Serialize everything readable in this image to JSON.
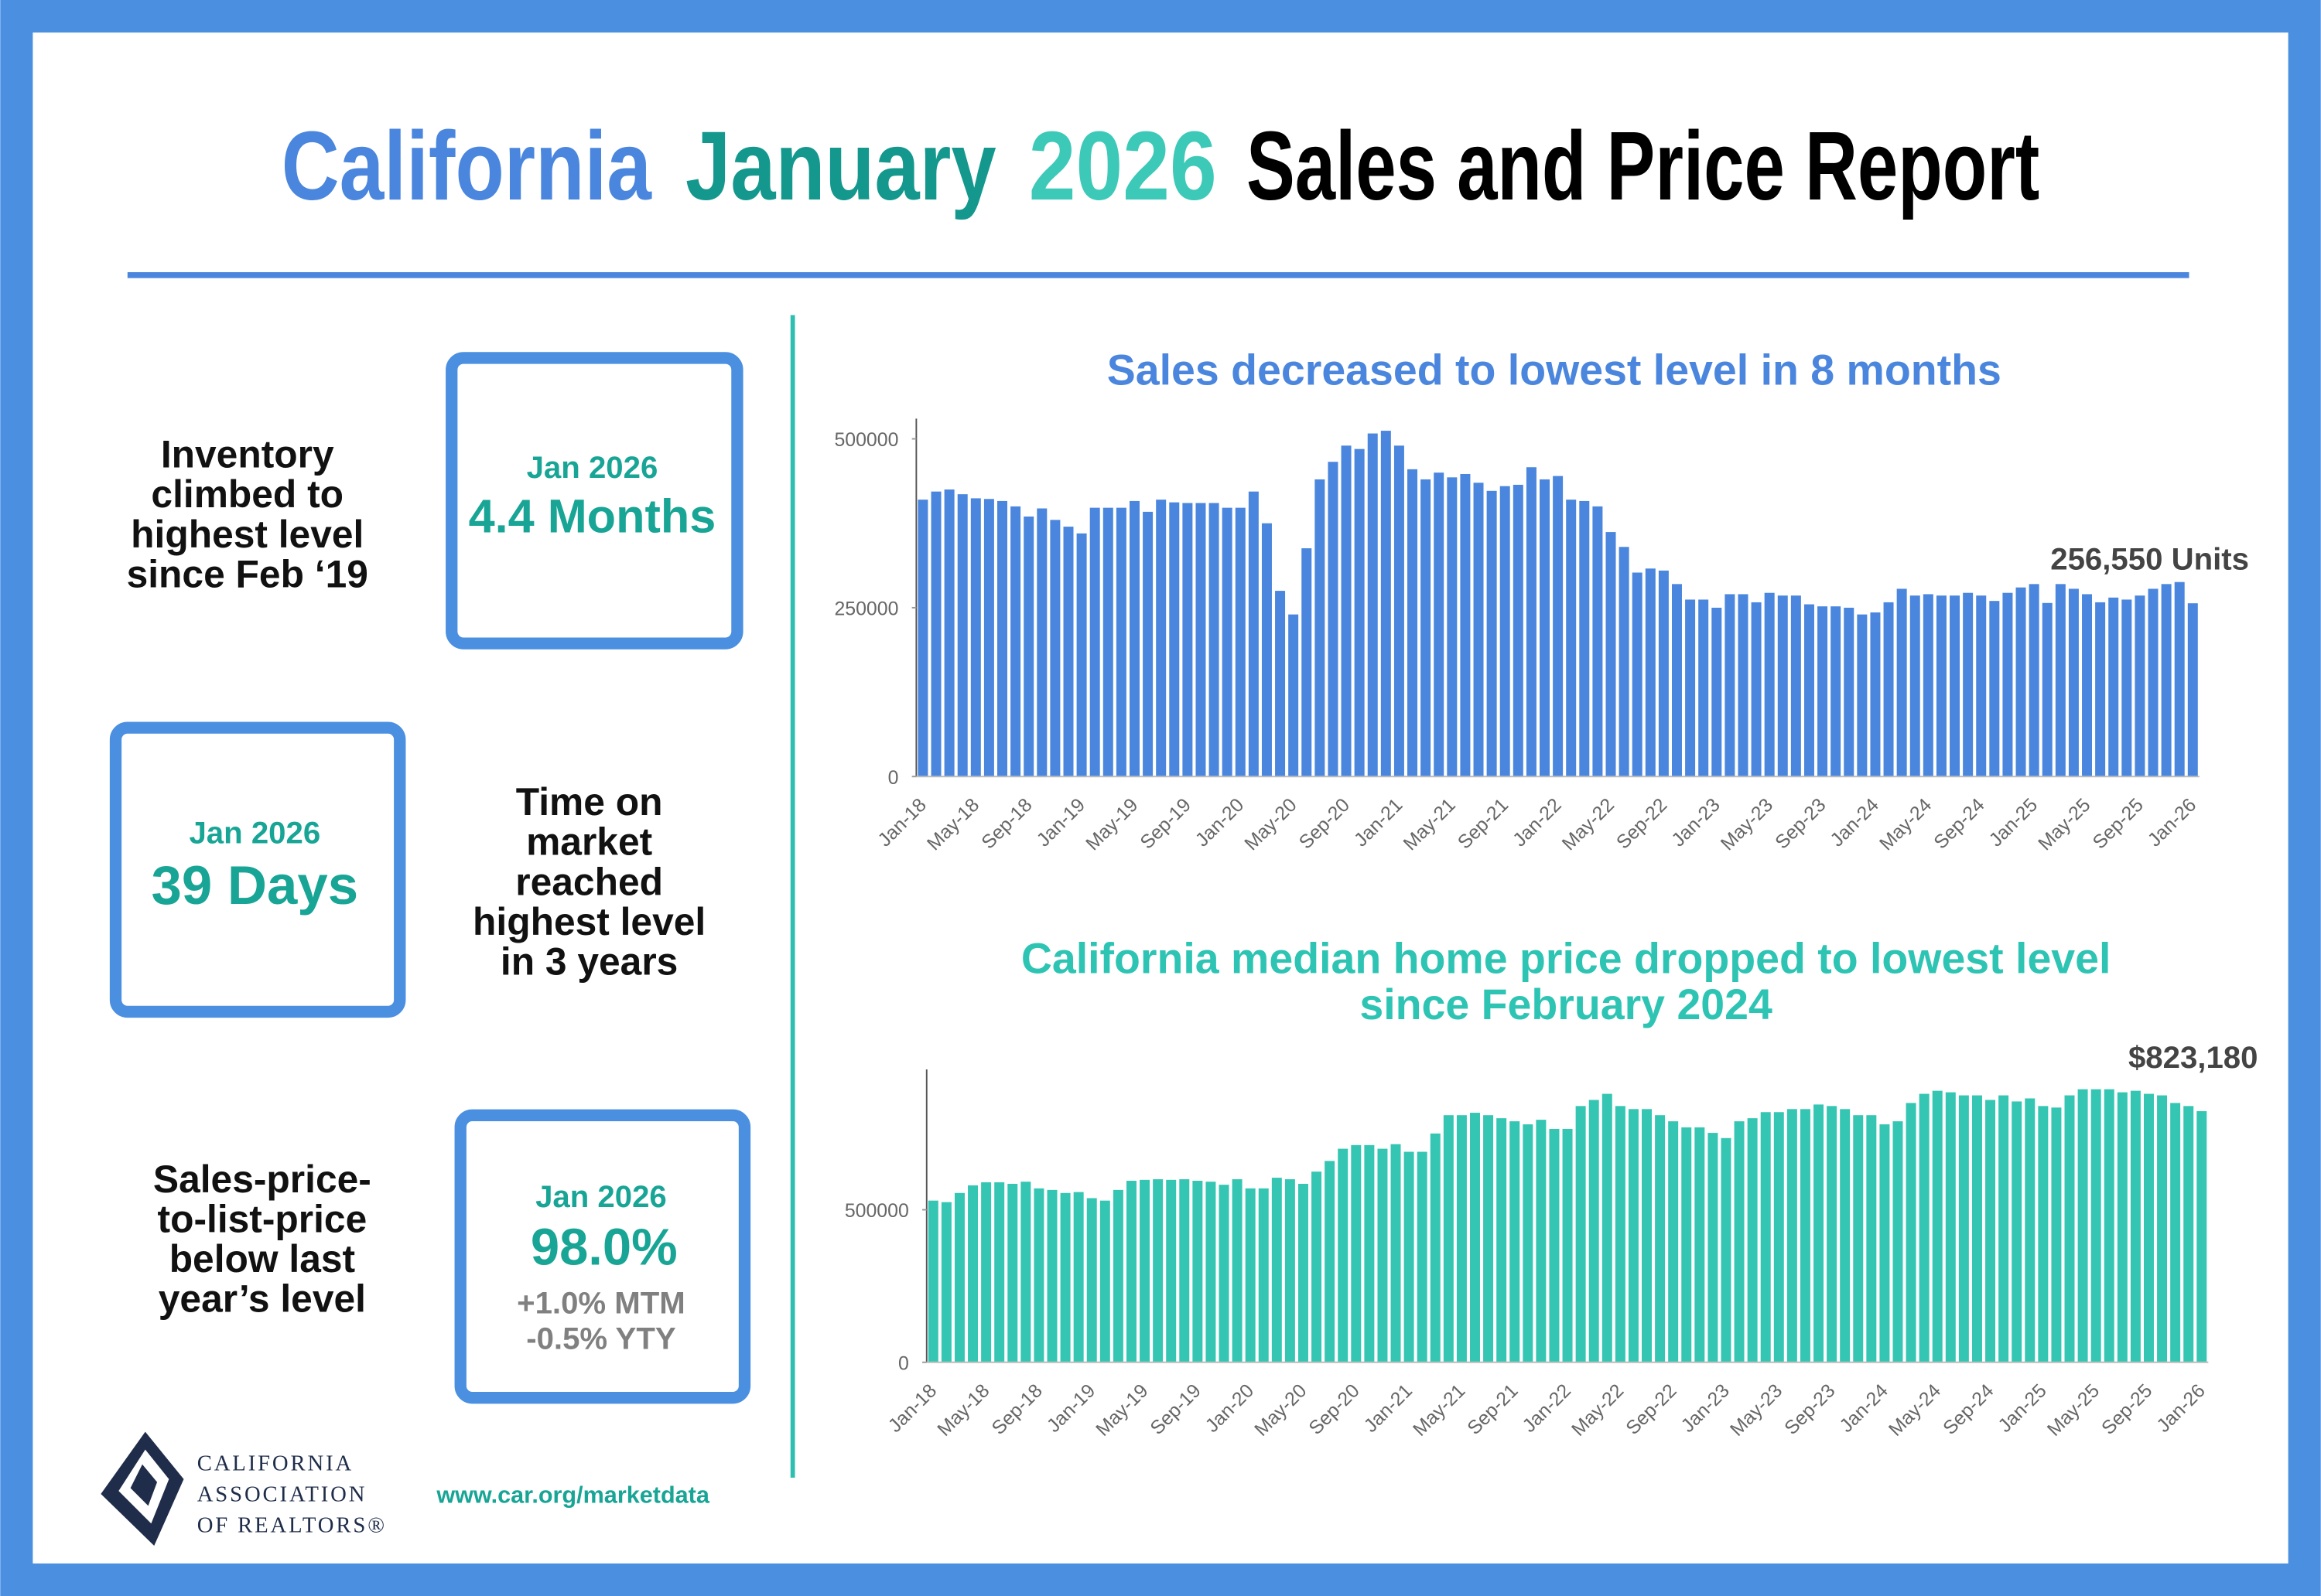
{
  "header": {
    "title_parts": [
      "California",
      "January",
      "2026",
      "Sales and Price Report"
    ]
  },
  "stats": [
    {
      "label_lines": [
        "Inventory",
        "climbed to",
        "highest level",
        "since Feb ‘19"
      ],
      "box_date": "Jan 2026",
      "box_value": "4.4 Months"
    },
    {
      "label_lines": [
        "Time on",
        "market",
        "reached",
        "highest level",
        "in 3 years"
      ],
      "box_date": "Jan 2026",
      "box_value": "39 Days"
    },
    {
      "label_lines": [
        "Sales-price-",
        "to-list-price",
        "below last",
        "year’s level"
      ],
      "box_date": "Jan 2026",
      "box_value": "98.0%",
      "notes": [
        "+1.0% MTM",
        "-0.5% YTY"
      ]
    }
  ],
  "chart_data": [
    {
      "type": "bar",
      "title": [
        "Sales decreased to lowest level in 8 months"
      ],
      "color": "#4a86dd",
      "ylim": [
        0,
        530000
      ],
      "yticks": [
        0,
        250000,
        500000
      ],
      "categories": [
        "Jan-18",
        null,
        null,
        null,
        "May-18",
        null,
        null,
        null,
        "Sep-18",
        null,
        null,
        null,
        "Jan-19",
        null,
        null,
        null,
        "May-19",
        null,
        null,
        null,
        "Sep-19",
        null,
        null,
        null,
        "Jan-20",
        null,
        null,
        null,
        "May-20",
        null,
        null,
        null,
        "Sep-20",
        null,
        null,
        null,
        "Jan-21",
        null,
        null,
        null,
        "May-21",
        null,
        null,
        null,
        "Sep-21",
        null,
        null,
        null,
        "Jan-22",
        null,
        null,
        null,
        "May-22",
        null,
        null,
        null,
        "Sep-22",
        null,
        null,
        null,
        "Jan-23",
        null,
        null,
        null,
        "May-23",
        null,
        null,
        null,
        "Sep-23",
        null,
        null,
        null,
        "Jan-24",
        null,
        null,
        null,
        "May-24",
        null,
        null,
        null,
        "Sep-24",
        null,
        null,
        null,
        "Jan-25",
        null,
        null,
        null,
        "May-25",
        null,
        null,
        null,
        "Sep-25",
        null,
        null,
        null,
        "Jan-26"
      ],
      "values": [
        410000,
        422000,
        425000,
        418000,
        412000,
        411000,
        408000,
        400000,
        385000,
        397000,
        380000,
        370000,
        360000,
        398000,
        398000,
        398000,
        408000,
        392000,
        410000,
        406000,
        405000,
        405000,
        405000,
        398000,
        398000,
        422000,
        375000,
        275000,
        240000,
        338000,
        440000,
        466000,
        490000,
        485000,
        508000,
        512000,
        490000,
        455000,
        440000,
        450000,
        443000,
        448000,
        435000,
        423000,
        430000,
        432000,
        458000,
        440000,
        445000,
        410000,
        408000,
        400000,
        362000,
        340000,
        302000,
        308000,
        305000,
        285000,
        262000,
        262000,
        250000,
        270000,
        270000,
        258000,
        272000,
        268000,
        268000,
        255000,
        252000,
        252000,
        250000,
        240000,
        243000,
        258000,
        278000,
        268000,
        270000,
        268000,
        268000,
        272000,
        268000,
        260000,
        272000,
        280000,
        285000,
        257000,
        285000,
        278000,
        270000,
        258000,
        265000,
        262000,
        268000,
        278000,
        285000,
        288000,
        256550
      ],
      "value_labels": [
        null,
        null,
        null,
        null,
        null,
        null,
        null,
        null,
        null,
        null,
        null,
        null,
        null,
        null,
        null,
        null,
        null,
        null,
        null,
        null,
        null,
        null,
        null,
        null,
        null,
        null,
        null,
        null,
        null,
        null,
        null,
        null,
        null,
        null,
        null,
        null,
        null,
        null,
        null,
        null,
        null,
        null,
        null,
        null,
        null,
        null,
        null,
        null,
        null,
        null,
        null,
        null,
        null,
        null,
        null,
        null,
        null,
        null,
        null,
        null,
        null,
        null,
        null,
        null,
        null,
        null,
        null,
        null,
        null,
        null,
        null,
        null,
        null,
        null,
        null,
        null,
        null,
        null,
        null,
        null,
        null,
        null,
        null,
        null,
        null,
        null,
        null,
        null,
        null,
        null,
        null,
        null,
        null,
        null,
        null,
        null,
        "256,550 Units"
      ]
    },
    {
      "type": "bar",
      "title": [
        "California median home price dropped to lowest level",
        "since February 2024"
      ],
      "color": "#35c6b3",
      "ylim": [
        0,
        960000
      ],
      "yticks": [
        0,
        500000
      ],
      "categories": [
        "Jan-18",
        null,
        null,
        null,
        "May-18",
        null,
        null,
        null,
        "Sep-18",
        null,
        null,
        null,
        "Jan-19",
        null,
        null,
        null,
        "May-19",
        null,
        null,
        null,
        "Sep-19",
        null,
        null,
        null,
        "Jan-20",
        null,
        null,
        null,
        "May-20",
        null,
        null,
        null,
        "Sep-20",
        null,
        null,
        null,
        "Jan-21",
        null,
        null,
        null,
        "May-21",
        null,
        null,
        null,
        "Sep-21",
        null,
        null,
        null,
        "Jan-22",
        null,
        null,
        null,
        "May-22",
        null,
        null,
        null,
        "Sep-22",
        null,
        null,
        null,
        "Jan-23",
        null,
        null,
        null,
        "May-23",
        null,
        null,
        null,
        "Sep-23",
        null,
        null,
        null,
        "Jan-24",
        null,
        null,
        null,
        "May-24",
        null,
        null,
        null,
        "Sep-24",
        null,
        null,
        null,
        "Jan-25",
        null,
        null,
        null,
        "May-25",
        null,
        null,
        null,
        "Sep-25",
        null,
        null,
        null,
        "Jan-26"
      ],
      "values": [
        530000,
        525000,
        555000,
        580000,
        590000,
        590000,
        585000,
        592000,
        570000,
        565000,
        555000,
        558000,
        538000,
        530000,
        565000,
        595000,
        598000,
        600000,
        598000,
        600000,
        595000,
        592000,
        582000,
        600000,
        570000,
        570000,
        605000,
        600000,
        585000,
        625000,
        660000,
        700000,
        712000,
        712000,
        700000,
        715000,
        690000,
        690000,
        750000,
        810000,
        810000,
        818000,
        810000,
        800000,
        790000,
        780000,
        795000,
        765000,
        765000,
        840000,
        860000,
        880000,
        840000,
        830000,
        830000,
        810000,
        790000,
        770000,
        770000,
        752000,
        735000,
        790000,
        800000,
        820000,
        820000,
        830000,
        830000,
        845000,
        840000,
        830000,
        810000,
        810000,
        780000,
        790000,
        850000,
        880000,
        890000,
        885000,
        875000,
        875000,
        860000,
        875000,
        855000,
        865000,
        840000,
        835000,
        875000,
        895000,
        895000,
        895000,
        885000,
        890000,
        880000,
        875000,
        850000,
        840000,
        823180
      ],
      "value_labels": [
        null,
        null,
        null,
        null,
        null,
        null,
        null,
        null,
        null,
        null,
        null,
        null,
        null,
        null,
        null,
        null,
        null,
        null,
        null,
        null,
        null,
        null,
        null,
        null,
        null,
        null,
        null,
        null,
        null,
        null,
        null,
        null,
        null,
        null,
        null,
        null,
        null,
        null,
        null,
        null,
        null,
        null,
        null,
        null,
        null,
        null,
        null,
        null,
        null,
        null,
        null,
        null,
        null,
        null,
        null,
        null,
        null,
        null,
        null,
        null,
        null,
        null,
        null,
        null,
        null,
        null,
        null,
        null,
        null,
        null,
        null,
        null,
        null,
        null,
        null,
        null,
        null,
        null,
        null,
        null,
        null,
        null,
        null,
        null,
        null,
        null,
        null,
        null,
        null,
        null,
        null,
        null,
        null,
        null,
        null,
        null,
        "$823,180"
      ]
    }
  ],
  "footer": {
    "org_lines": [
      "CALIFORNIA",
      "ASSOCIATION",
      "OF REALTORS®"
    ],
    "url": "www.car.org/marketdata"
  }
}
